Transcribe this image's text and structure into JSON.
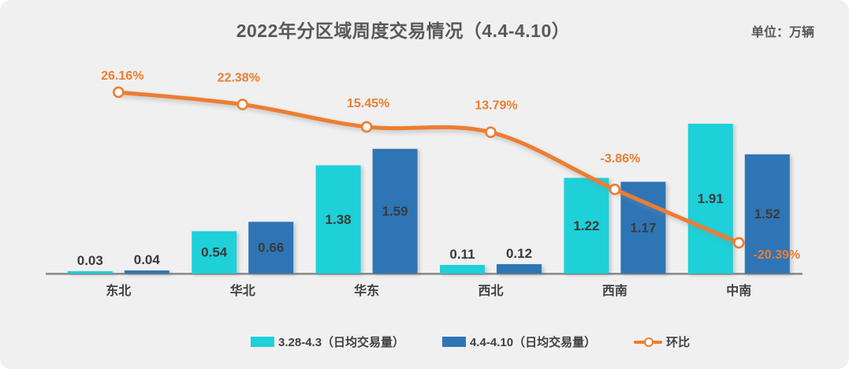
{
  "header": {
    "title": "2022年分区域周度交易情况（4.4-4.10）",
    "unit": "单位：万辆"
  },
  "legend": {
    "position": "bottom",
    "items": [
      {
        "label": "3.28-4.3（日均交易量）",
        "color": "#1ed0d8",
        "marker": "bar-swatch"
      },
      {
        "label": "4.4-4.10（日均交易量）",
        "color": "#2e75b6",
        "marker": "bar-swatch"
      },
      {
        "label": "环比",
        "color": "#ed7d31",
        "marker": "line-with-dot"
      }
    ]
  },
  "chart_data": {
    "type": "bar",
    "subtype": "grouped-bars-with-line-on-secondary-axis",
    "title": "2022年分区域周度交易情况（4.4-4.10）",
    "unit": "单位：万辆",
    "categories": [
      "东北",
      "华北",
      "华东",
      "西北",
      "西南",
      "中南"
    ],
    "series": [
      {
        "name": "3.28-4.3（日均交易量）",
        "type": "bar",
        "color": "#1ed0d8",
        "values": [
          0.03,
          0.54,
          1.38,
          0.11,
          1.22,
          1.91
        ],
        "labels": [
          "0.03",
          "0.54",
          "1.38",
          "0.11",
          "1.22",
          "1.91"
        ]
      },
      {
        "name": "4.4-4.10（日均交易量）",
        "type": "bar",
        "color": "#2e75b6",
        "values": [
          0.04,
          0.66,
          1.59,
          0.12,
          1.17,
          1.52
        ],
        "labels": [
          "0.04",
          "0.66",
          "1.59",
          "0.12",
          "1.17",
          "1.52"
        ]
      },
      {
        "name": "环比",
        "type": "line",
        "color": "#ed7d31",
        "values_percent": [
          26.16,
          22.38,
          15.45,
          13.79,
          -3.86,
          -20.39
        ],
        "labels": [
          "26.16%",
          "22.38%",
          "15.45%",
          "13.79%",
          "-3.86%",
          "-20.39%"
        ],
        "marker": "white-circle-orange-ring"
      }
    ],
    "xlabel": "",
    "ylabel": "",
    "bar_axis_range": [
      0,
      2
    ],
    "line_axis_range_percent": [
      -30,
      30
    ],
    "gridlines": false,
    "legend_position": "bottom",
    "background_color": "#f0f0f0",
    "axis_line_color": "#8c8c8c",
    "value_label_color": "#3a3a3a",
    "title_color": "#595959"
  }
}
